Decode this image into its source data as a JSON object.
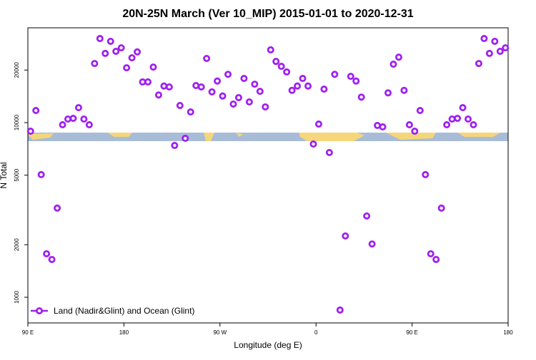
{
  "chart_data": {
    "type": "scatter",
    "title": "20N-25N March (Ver 10_MIP)   2015-01-01 to 2020-12-31",
    "x_label": "Longitude (deg E)",
    "y_label": "N Total",
    "log_y": true,
    "xlim": [
      90,
      540
    ],
    "ylim": [
      713,
      34900
    ],
    "xticks": [
      {
        "value": 90,
        "label": "90 E"
      },
      180,
      {
        "value": 270,
        "label": "90 W"
      },
      {
        "value": 360,
        "label": "0"
      },
      {
        "value": 450,
        "label": "90 E"
      },
      {
        "value": 540,
        "label": "180"
      }
    ],
    "yticks": [
      1000,
      2000,
      5000,
      10000,
      20000
    ],
    "legend": "bottom-left",
    "x": [
      92.5,
      97.5,
      102.5,
      107.5,
      112.5,
      117.5,
      122.5,
      127.5,
      132.5,
      137.5,
      142.5,
      147.5,
      152.5,
      157.5,
      162.5,
      167.5,
      172.5,
      177.5,
      182.5,
      187.5,
      192.5,
      197.5,
      202.5,
      207.5,
      212.5,
      217.5,
      222.5,
      227.5,
      232.5,
      237.5,
      242.5,
      247.5,
      252.5,
      257.5,
      262.5,
      267.5,
      272.5,
      277.5,
      282.5,
      287.5,
      292.5,
      297.5,
      302.5,
      307.5,
      312.5,
      317.5,
      322.5,
      327.5,
      332.5,
      337.5,
      342.5,
      347.5,
      352.5,
      357.5,
      362.5,
      367.5,
      372.5,
      377.5,
      382.5,
      387.5,
      392.5,
      397.5,
      402.5,
      407.5,
      412.5,
      417.5,
      422.5,
      427.5,
      432.5,
      437.5,
      442.5,
      447.5,
      452.5,
      457.5,
      462.5,
      467.5,
      472.5,
      477.5,
      482.5,
      487.5,
      492.5,
      497.5,
      502.5,
      507.5,
      512.5,
      517.5,
      522.5,
      527.5,
      532.5,
      537.5
    ],
    "series": [
      {
        "name": "Land (Nadir&Glint) and Ocean (Glint)",
        "color": "#a020f0",
        "values": [
          8930,
          11730,
          5040,
          1774,
          1646,
          3240,
          9720,
          10480,
          10580,
          12180,
          10480,
          9720,
          21800,
          30300,
          24900,
          29200,
          25600,
          26800,
          20600,
          23500,
          25400,
          17100,
          17100,
          20800,
          14400,
          16200,
          16000,
          7400,
          12530,
          8130,
          11510,
          16300,
          16000,
          23300,
          15000,
          17300,
          14200,
          18900,
          12770,
          13900,
          17900,
          13130,
          16600,
          15100,
          12300,
          26100,
          22400,
          21000,
          19500,
          15300,
          16200,
          17900,
          16200,
          7540,
          9810,
          15550,
          6740,
          18900,
          845,
          2244,
          18400,
          17300,
          14000,
          2920,
          2020,
          9630,
          9450,
          14800,
          21600,
          23700,
          15300,
          9720,
          8930,
          11730,
          5040,
          1774,
          1646,
          3240,
          9720,
          10480,
          10580,
          12180,
          10480,
          9720,
          21800,
          30300,
          24900,
          29200,
          25600,
          26800
        ]
      }
    ]
  }
}
